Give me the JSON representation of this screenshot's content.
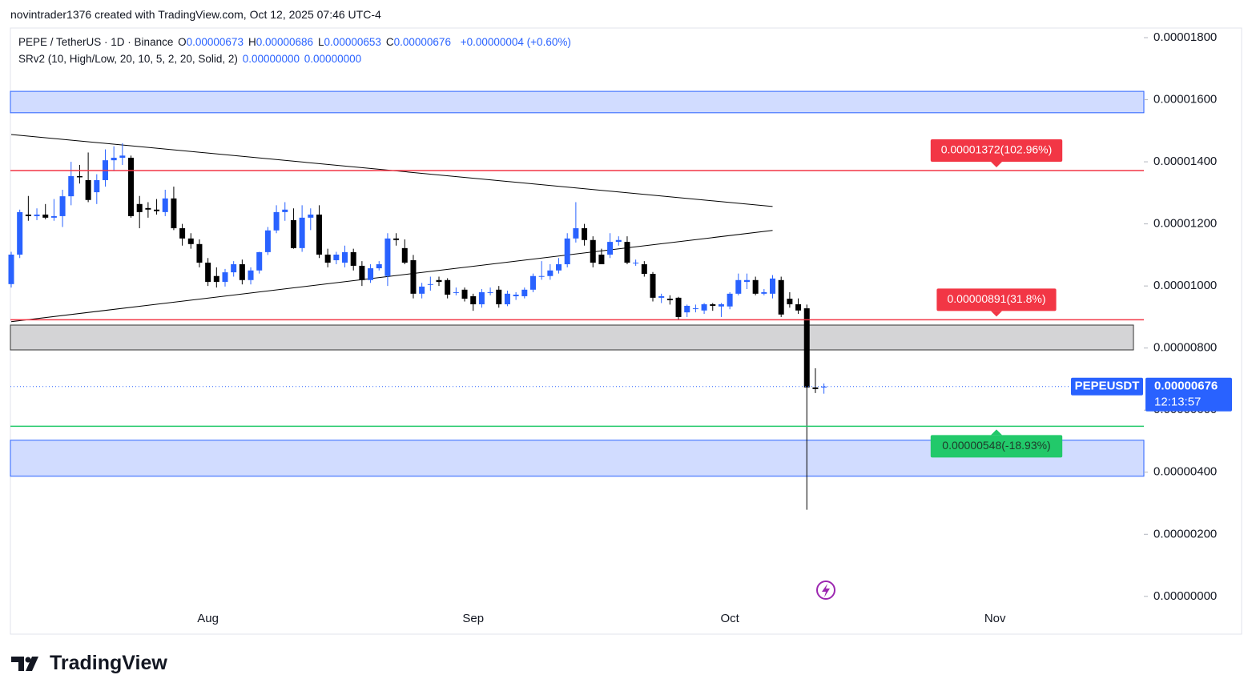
{
  "header": {
    "credit": "novintrader1376 created with TradingView.com, Oct 12, 2025 07:46 UTC-4"
  },
  "legend": {
    "symbol": "PEPE / TetherUS · 1D · Binance",
    "ohlc": [
      {
        "key": "O",
        "value": "0.00000673"
      },
      {
        "key": "H",
        "value": "0.00000686"
      },
      {
        "key": "L",
        "value": "0.00000653"
      },
      {
        "key": "C",
        "value": "0.00000676"
      }
    ],
    "change": "+0.00000004 (+0.60%)",
    "indicator": "SRv2 (10, High/Low, 20, 10, 5, 2, 20, Solid, 2)",
    "indicator_values": [
      "0.00000000",
      "0.00000000"
    ]
  },
  "footer": {
    "brand": "TradingView"
  },
  "chart_data": {
    "type": "candlestick",
    "up_color": "#2962ff",
    "down_color": "#000000",
    "categories": [
      null,
      null,
      null,
      null,
      null,
      null,
      null,
      null,
      null,
      null,
      null,
      null,
      null,
      null,
      null,
      null,
      null,
      null,
      null,
      null,
      null,
      null,
      null,
      "Aug",
      null,
      null,
      null,
      null,
      null,
      null,
      null,
      null,
      null,
      null,
      null,
      null,
      null,
      null,
      null,
      null,
      null,
      null,
      null,
      null,
      null,
      null,
      null,
      null,
      null,
      null,
      null,
      null,
      null,
      null,
      "Sep",
      null,
      null,
      null,
      null,
      null,
      null,
      null,
      null,
      null,
      null,
      null,
      null,
      null,
      null,
      null,
      null,
      null,
      null,
      null,
      null,
      null,
      null,
      null,
      null,
      null,
      null,
      null,
      null,
      null,
      "Oct",
      null,
      null,
      null,
      null,
      null,
      null,
      null,
      null,
      null,
      null,
      null,
      null,
      null,
      null,
      null,
      null,
      null,
      null,
      null,
      null,
      null,
      null,
      null,
      null,
      null,
      null,
      null,
      null,
      null,
      null,
      "Nov"
    ],
    "open": [
      1.006e-05,
      1.101e-05,
      1.23e-05,
      1.225e-05,
      1.23e-05,
      1.22e-05,
      1.225e-05,
      1.289e-05,
      1.354e-05,
      1.341e-05,
      1.302e-05,
      1.341e-05,
      1.405e-05,
      1.413e-05,
      1.413e-05,
      1.264e-05,
      1.251e-05,
      1.246e-05,
      1.238e-05,
      1.282e-05,
      1.186e-05,
      1.153e-05,
      1.135e-05,
      1.075e-05,
      1.032e-05,
      1.013e-05,
      1.044e-05,
      1.07e-05,
      1.019e-05,
      1.05e-05,
      1.109e-05,
      1.179e-05,
      1.238e-05,
      1.212e-05,
      1.122e-05,
      1.22e-05,
      1.23e-05,
      1.101e-05,
      1.083e-05,
      1.075e-05,
      1.109e-05,
      1.065e-05,
      1.019e-05,
      1.057e-05,
      1.032e-05,
      1.153e-05,
      1.122e-05,
      1.083e-05,
      9.75e-06,
      1.006e-05,
      1.019e-05,
      1.019e-05,
      9.8e-06,
      9.88e-06,
      9.67e-06,
      9.41e-06,
      9.8e-06,
      9.88e-06,
      9.41e-06,
      9.67e-06,
      9.67e-06,
      9.88e-06,
      1.032e-05,
      1.032e-05,
      1.05e-05,
      1.07e-05,
      1.153e-05,
      1.186e-05,
      1.148e-05,
      1.101e-05,
      1.101e-05,
      1.142e-05,
      1.142e-05,
      1.075e-05,
      1.07e-05,
      1.039e-05,
      9.62e-06,
      9.59e-06,
      9.62e-06,
      9.15e-06,
      9.28e-06,
      9.21e-06,
      9.41e-06,
      9.34e-06,
      9.34e-06,
      9.75e-06,
      1.013e-05,
      1.019e-05,
      9.75e-06,
      9.75e-06,
      1.019e-05,
      9.59e-06,
      9.41e-06,
      9.28e-06,
      6.73e-06,
      6.73e-06,
      null,
      null,
      null,
      null,
      null,
      null,
      null,
      null,
      null,
      null,
      null,
      null,
      null,
      null,
      null,
      null,
      null,
      null,
      null,
      null
    ],
    "high": [
      1.11e-05,
      1.246e-05,
      1.29e-05,
      1.25e-05,
      1.264e-05,
      1.28e-05,
      1.31e-05,
      1.4e-05,
      1.39e-05,
      1.43e-05,
      1.36e-05,
      1.44e-05,
      1.45e-05,
      1.46e-05,
      1.42e-05,
      1.29e-05,
      1.27e-05,
      1.28e-05,
      1.31e-05,
      1.32e-05,
      1.2e-05,
      1.17e-05,
      1.15e-05,
      1.09e-05,
      1.06e-05,
      1.055e-05,
      1.08e-05,
      1.085e-05,
      1.06e-05,
      1.11e-05,
      1.19e-05,
      1.26e-05,
      1.27e-05,
      1.25e-05,
      1.26e-05,
      1.25e-05,
      1.26e-05,
      1.12e-05,
      1.11e-05,
      1.13e-05,
      1.12e-05,
      1.08e-05,
      1.07e-05,
      1.08e-05,
      1.17e-05,
      1.17e-05,
      1.15e-05,
      1.1e-05,
      1.01e-05,
      1.03e-05,
      1.03e-05,
      1.025e-05,
      9.95e-06,
      9.95e-06,
      9.75e-06,
      9.9e-06,
      9.95e-06,
      1e-05,
      9.85e-06,
      9.8e-06,
      9.95e-06,
      1.04e-05,
      1.08e-05,
      1.07e-05,
      1.09e-05,
      1.17e-05,
      1.27e-05,
      1.2e-05,
      1.16e-05,
      1.12e-05,
      1.17e-05,
      1.16e-05,
      1.16e-05,
      1.085e-05,
      1.08e-05,
      1.045e-05,
      9.75e-06,
      9.7e-06,
      9.65e-06,
      9.4e-06,
      9.4e-06,
      9.45e-06,
      9.45e-06,
      9.45e-06,
      9.8e-06,
      1.04e-05,
      1.04e-05,
      1.03e-05,
      9.9e-06,
      1.035e-05,
      1.03e-05,
      9.8e-06,
      9.6e-06,
      9.4e-06,
      7.35e-06,
      6.86e-06,
      null,
      null,
      null,
      null,
      null,
      null,
      null,
      null,
      null,
      null,
      null,
      null,
      null,
      null,
      null,
      null,
      null,
      null,
      null,
      null
    ],
    "low": [
      9.95e-06,
      1.09e-05,
      1.21e-05,
      1.212e-05,
      1.215e-05,
      1.21e-05,
      1.19e-05,
      1.26e-05,
      1.33e-05,
      1.27e-05,
      1.264e-05,
      1.32e-05,
      1.37e-05,
      1.39e-05,
      1.22e-05,
      1.186e-05,
      1.22e-05,
      1.23e-05,
      1.225e-05,
      1.18e-05,
      1.13e-05,
      1.12e-05,
      1.06e-05,
      1e-05,
      9.95e-06,
      9.98e-06,
      1.03e-05,
      1.005e-05,
      1.005e-05,
      1.04e-05,
      1.1e-05,
      1.17e-05,
      1.21e-05,
      1.12e-05,
      1.11e-05,
      1.18e-05,
      1.09e-05,
      1.06e-05,
      1.07e-05,
      1.06e-05,
      1.05e-05,
      1e-05,
      1.01e-05,
      1.05e-05,
      1e-05,
      1.13e-05,
      1.07e-05,
      9.6e-06,
      9.6e-06,
      9.85e-06,
      1e-05,
      9.6e-06,
      9.7e-06,
      9.5e-06,
      9.2e-06,
      9.3e-06,
      9.7e-06,
      9.3e-06,
      9.35e-06,
      9.55e-06,
      9.6e-06,
      9.8e-06,
      1.02e-05,
      1.02e-05,
      1.04e-05,
      1.06e-05,
      1.14e-05,
      1.13e-05,
      1.06e-05,
      1.07e-05,
      1.09e-05,
      1.13e-05,
      1.07e-05,
      1.065e-05,
      1.03e-05,
      9.5e-06,
      9.45e-06,
      9.4e-06,
      8.9e-06,
      9e-06,
      9.15e-06,
      9.1e-06,
      9.2e-06,
      9e-06,
      9.25e-06,
      9.7e-06,
      9.9e-06,
      9.7e-06,
      9.7e-06,
      9.6e-06,
      9e-06,
      9.3e-06,
      9.1e-06,
      2.79e-06,
      6.55e-06,
      6.53e-06,
      null,
      null,
      null,
      null,
      null,
      null,
      null,
      null,
      null,
      null,
      null,
      null,
      null,
      null,
      null,
      null,
      null,
      null,
      null,
      null
    ],
    "close": [
      1.101e-05,
      1.238e-05,
      1.225e-05,
      1.23e-05,
      1.22e-05,
      1.225e-05,
      1.289e-05,
      1.354e-05,
      1.35e-05,
      1.277e-05,
      1.341e-05,
      1.405e-05,
      1.413e-05,
      1.42e-05,
      1.225e-05,
      1.238e-05,
      1.246e-05,
      1.241e-05,
      1.282e-05,
      1.186e-05,
      1.153e-05,
      1.135e-05,
      1.075e-05,
      1.013e-05,
      1.013e-05,
      1.044e-05,
      1.07e-05,
      1.019e-05,
      1.05e-05,
      1.109e-05,
      1.179e-05,
      1.238e-05,
      1.246e-05,
      1.122e-05,
      1.22e-05,
      1.23e-05,
      1.101e-05,
      1.075e-05,
      1.101e-05,
      1.109e-05,
      1.065e-05,
      1.019e-05,
      1.057e-05,
      1.07e-05,
      1.153e-05,
      1.148e-05,
      1.075e-05,
      9.75e-06,
      9.98e-06,
      1.006e-05,
      1.013e-05,
      9.72e-06,
      9.8e-06,
      9.59e-06,
      9.41e-06,
      9.8e-06,
      9.8e-06,
      9.41e-06,
      9.75e-06,
      9.72e-06,
      9.88e-06,
      1.032e-05,
      1.032e-05,
      1.05e-05,
      1.07e-05,
      1.153e-05,
      1.186e-05,
      1.148e-05,
      1.075e-05,
      1.07e-05,
      1.142e-05,
      1.148e-05,
      1.075e-05,
      1.075e-05,
      1.039e-05,
      9.62e-06,
      9.67e-06,
      9.54e-06,
      9e-06,
      9.36e-06,
      9.28e-06,
      9.41e-06,
      9.36e-06,
      9.41e-06,
      9.75e-06,
      1.019e-05,
      1.019e-05,
      9.75e-06,
      9.8e-06,
      1.024e-05,
      9.08e-06,
      9.41e-06,
      9.21e-06,
      6.73e-06,
      6.68e-06,
      6.76e-06,
      null,
      null,
      null,
      null,
      null,
      null,
      null,
      null,
      null,
      null,
      null,
      null,
      null,
      null,
      null,
      null,
      null,
      null,
      null,
      null
    ],
    "ylim": [
      -3.4e-07,
      1.831e-05
    ],
    "yticks": [
      {
        "value": 0,
        "label": "0.00000000"
      },
      {
        "value": 2e-06,
        "label": "0.00000200"
      },
      {
        "value": 4e-06,
        "label": "0.00000400"
      },
      {
        "value": 6e-06,
        "label": "0.00000600"
      },
      {
        "value": 8e-06,
        "label": "0.00000800"
      },
      {
        "value": 1e-05,
        "label": "0.00001000"
      },
      {
        "value": 1.2e-05,
        "label": "0.00001200"
      },
      {
        "value": 1.4e-05,
        "label": "0.00001400"
      },
      {
        "value": 1.6e-05,
        "label": "0.00001600"
      },
      {
        "value": 1.8e-05,
        "label": "0.00001800"
      }
    ],
    "zones": [
      {
        "from": 1.558e-05,
        "to": 1.627e-05,
        "color": "#d1dcff",
        "border": "#2962ff"
      },
      {
        "from": 7.94e-06,
        "to": 8.74e-06,
        "color": "#d4d4d6",
        "border": "#333333"
      },
      {
        "from": 3.87e-06,
        "to": 5.03e-06,
        "color": "#d1dcff",
        "border": "#2962ff"
      }
    ],
    "trendlines": [
      {
        "points": [
          [
            0,
            1.488e-05
          ],
          [
            89,
            1.256e-05
          ]
        ],
        "color": "#000000"
      },
      {
        "points": [
          [
            0,
            8.85e-06
          ],
          [
            89,
            1.179e-05
          ]
        ],
        "color": "#000000"
      }
    ],
    "levels": [
      {
        "value": 1.372e-05,
        "label": "0.00001372(102.96%)",
        "color": "#f23645",
        "text_color": "#ffffff",
        "label_position": "above"
      },
      {
        "value": 8.91e-06,
        "label": "0.00000891(31.8%)",
        "color": "#f23645",
        "text_color": "#ffffff",
        "label_position": "above"
      },
      {
        "value": 5.48e-06,
        "label": "0.00000548(-18.93%)",
        "color": "#22c96a",
        "text_color": "#1e3a2a",
        "label_position": "below"
      }
    ],
    "last_price": {
      "symbol": "PEPEUSDT",
      "value": 6.76e-06,
      "label": "0.00000676",
      "countdown": "12:13:57",
      "color": "#2962ff"
    }
  }
}
